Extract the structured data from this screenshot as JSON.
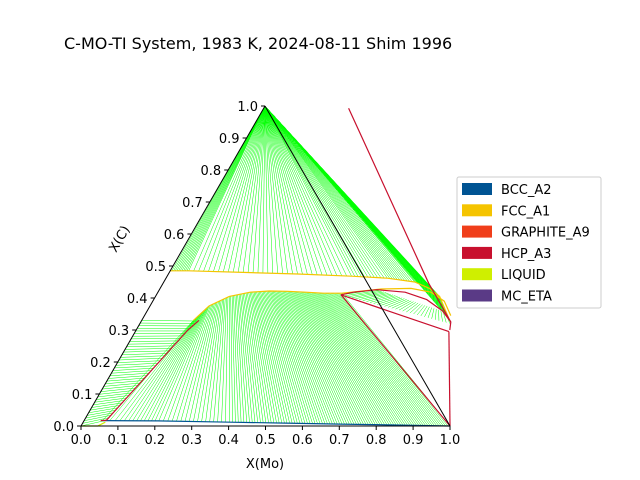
{
  "chart_data": {
    "type": "ternary-phase-diagram",
    "title": "C-MO-TI System, 1983 K, 2024-08-11 Shim 1996",
    "xlabel": "X(Mo)",
    "ylabel": "X(C)",
    "xlim": [
      0,
      1
    ],
    "ylim": [
      0,
      1
    ],
    "xticks": [
      "0.0",
      "0.1",
      "0.2",
      "0.3",
      "0.4",
      "0.5",
      "0.6",
      "0.7",
      "0.8",
      "0.9",
      "1.0"
    ],
    "yticks": [
      "0.0",
      "0.1",
      "0.2",
      "0.3",
      "0.4",
      "0.5",
      "0.6",
      "0.7",
      "0.8",
      "0.9",
      "1.0"
    ],
    "grid": false,
    "legend_position": "right",
    "legend": [
      {
        "name": "BCC_A2",
        "color": "#005493"
      },
      {
        "name": "FCC_A1",
        "color": "#f5c400"
      },
      {
        "name": "GRAPHITE_A9",
        "color": "#f03e1a"
      },
      {
        "name": "HCP_A3",
        "color": "#c8102e"
      },
      {
        "name": "LIQUID",
        "color": "#cfef00"
      },
      {
        "name": "MC_ETA",
        "color": "#5a3a86"
      }
    ],
    "tie_line_color": "#00ff00",
    "phase_boundaries": [
      {
        "phase": "FCC_A1",
        "color": "#f5c400",
        "points": [
          [
            0.0,
            0.485
          ],
          [
            0.05,
            0.485
          ],
          [
            0.2,
            0.48
          ],
          [
            0.35,
            0.475
          ],
          [
            0.5,
            0.468
          ],
          [
            0.6,
            0.462
          ],
          [
            0.68,
            0.45
          ],
          [
            0.73,
            0.43
          ],
          [
            0.77,
            0.405
          ],
          [
            0.8,
            0.37
          ],
          [
            0.83,
            0.335
          ]
        ]
      },
      {
        "phase": "FCC_A1",
        "color": "#f5c400",
        "points": [
          [
            0.14,
            0.33
          ],
          [
            0.16,
            0.375
          ],
          [
            0.2,
            0.405
          ],
          [
            0.25,
            0.418
          ],
          [
            0.3,
            0.422
          ],
          [
            0.35,
            0.421
          ],
          [
            0.4,
            0.418
          ],
          [
            0.45,
            0.415
          ],
          [
            0.5,
            0.415
          ],
          [
            0.6,
            0.428
          ],
          [
            0.68,
            0.43
          ],
          [
            0.74,
            0.418
          ],
          [
            0.79,
            0.39
          ],
          [
            0.83,
            0.345
          ]
        ]
      },
      {
        "phase": "BCC_A2",
        "color": "#005493",
        "points": [
          [
            0.05,
            0.017
          ],
          [
            0.2,
            0.016
          ],
          [
            0.4,
            0.012
          ],
          [
            0.55,
            0.009
          ],
          [
            0.7,
            0.006
          ],
          [
            0.85,
            0.003
          ],
          [
            1.0,
            0.0
          ]
        ]
      },
      {
        "phase": "LIQUID",
        "color": "#cfef00",
        "points": [
          [
            0.0,
            0.0
          ],
          [
            0.045,
            0.0
          ],
          [
            0.06,
            0.012
          ]
        ]
      },
      {
        "phase": "HCP_A3",
        "color": "#c8102e",
        "points": [
          [
            0.23,
            0.993
          ],
          [
            0.72,
            0.446
          ],
          [
            0.84,
            0.325
          ],
          [
            0.85,
            0.3
          ]
        ]
      },
      {
        "phase": "HCP_A3",
        "color": "#c8102e",
        "points": [
          [
            0.84,
            0.325
          ],
          [
            0.8,
            0.36
          ],
          [
            0.74,
            0.395
          ],
          [
            0.67,
            0.418
          ],
          [
            0.59,
            0.426
          ],
          [
            0.53,
            0.418
          ],
          [
            0.5,
            0.41
          ]
        ]
      },
      {
        "phase": "HCP_A3",
        "color": "#c8102e",
        "points": [
          [
            0.5,
            0.41
          ],
          [
            0.85,
            0.295
          ]
        ]
      },
      {
        "phase": "HCP_A3",
        "color": "#c8102e",
        "points": [
          [
            0.5,
            0.41
          ],
          [
            1.0,
            0.0
          ]
        ]
      },
      {
        "phase": "HCP_A3",
        "color": "#c8102e",
        "points": [
          [
            0.85,
            0.295
          ],
          [
            1.0,
            0.0
          ]
        ]
      },
      {
        "phase": "HCP_A3",
        "color": "#c8102e",
        "points": [
          [
            0.06,
            0.018
          ],
          [
            0.14,
            0.3
          ],
          [
            0.155,
            0.33
          ]
        ]
      },
      {
        "phase": "HCP_A3",
        "color": "#c8102e",
        "points": [
          [
            0.045,
            0.017
          ],
          [
            0.06,
            0.018
          ]
        ]
      }
    ]
  }
}
